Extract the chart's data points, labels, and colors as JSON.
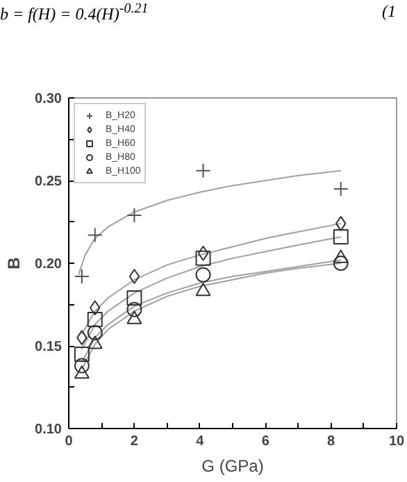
{
  "chart_data": {
    "type": "scatter",
    "xlabel": "G (GPa)",
    "ylabel": "B",
    "annotations": [
      "b = f(H) = 0.4(H)$^{-0.21}$",
      "(1"
    ],
    "xlim": [
      0,
      10
    ],
    "ylim": [
      0.1,
      0.3
    ],
    "xticks": [
      0,
      {
        "value": 1,
        "label": null
      },
      2,
      {
        "value": 3,
        "label": null
      },
      4,
      {
        "value": 5,
        "label": null
      },
      6,
      {
        "value": 7,
        "label": null
      },
      8,
      {
        "value": 9,
        "label": null
      },
      10
    ],
    "yticks": [
      {
        "value": 0.1,
        "label": "0.10"
      },
      {
        "value": 0.125,
        "label": null
      },
      0.15,
      {
        "value": 0.175,
        "label": null
      },
      {
        "value": 0.2,
        "label": "0.20"
      },
      {
        "value": 0.225,
        "label": null
      },
      0.25,
      {
        "value": 0.275,
        "label": null
      },
      {
        "value": 0.3,
        "label": "0.30"
      }
    ],
    "grid": false,
    "legend": "top left",
    "series": [
      {
        "type": "line",
        "color": "#a0a0a0",
        "x": [
          0.3,
          0.5,
          0.8,
          1.2,
          2,
          3,
          4,
          5,
          6,
          7,
          8.3
        ],
        "values": [
          0.193,
          0.205,
          0.215,
          0.222,
          0.231,
          0.238,
          0.243,
          0.247,
          0.25,
          0.253,
          0.256
        ]
      },
      {
        "type": "line",
        "color": "#a0a0a0",
        "x": [
          0.4,
          0.8,
          1.2,
          2,
          3,
          4,
          5,
          6,
          7,
          8.3
        ],
        "values": [
          0.157,
          0.171,
          0.179,
          0.19,
          0.199,
          0.205,
          0.21,
          0.215,
          0.219,
          0.224
        ]
      },
      {
        "type": "line",
        "color": "#a0a0a0",
        "x": [
          0.4,
          0.8,
          1.2,
          2,
          3,
          4,
          5,
          6,
          7,
          8.3
        ],
        "values": [
          0.148,
          0.163,
          0.171,
          0.182,
          0.191,
          0.198,
          0.203,
          0.207,
          0.211,
          0.216
        ]
      },
      {
        "type": "line",
        "color": "#a0a0a0",
        "x": [
          0.4,
          0.8,
          1.2,
          2,
          3,
          4,
          5,
          6,
          7,
          8.3
        ],
        "values": [
          0.14,
          0.155,
          0.163,
          0.174,
          0.182,
          0.188,
          0.192,
          0.195,
          0.198,
          0.202
        ]
      },
      {
        "type": "line",
        "color": "#a0a0a0",
        "x": [
          0.4,
          0.8,
          1.2,
          2,
          3,
          4,
          5,
          6,
          7,
          8.3
        ],
        "values": [
          0.136,
          0.151,
          0.16,
          0.171,
          0.18,
          0.186,
          0.19,
          0.194,
          0.197,
          0.2
        ]
      },
      {
        "name": "B_H20",
        "marker": "cross",
        "color": "#555555",
        "x": [
          0.4,
          0.8,
          2,
          4.1,
          8.3
        ],
        "values": [
          0.192,
          0.217,
          0.229,
          0.256,
          0.245
        ]
      },
      {
        "name": "B_H40",
        "marker": "diamond",
        "color": "#333333",
        "x": [
          0.4,
          0.8,
          2,
          4.1,
          8.3
        ],
        "values": [
          0.155,
          0.173,
          0.192,
          0.206,
          0.224
        ]
      },
      {
        "name": "B_H60",
        "marker": "square",
        "color": "#333333",
        "x": [
          0.4,
          0.8,
          2,
          4.1,
          8.3
        ],
        "values": [
          0.145,
          0.166,
          0.179,
          0.203,
          0.216
        ]
      },
      {
        "name": "B_H80",
        "marker": "circle",
        "color": "#333333",
        "x": [
          0.4,
          0.8,
          2,
          4.1,
          8.3
        ],
        "values": [
          0.138,
          0.158,
          0.172,
          0.193,
          0.2
        ]
      },
      {
        "name": "B_H100",
        "marker": "triangle",
        "color": "#333333",
        "x": [
          0.4,
          0.8,
          2,
          4.1,
          8.3
        ],
        "values": [
          0.133,
          0.151,
          0.166,
          0.183,
          0.203
        ]
      }
    ]
  }
}
